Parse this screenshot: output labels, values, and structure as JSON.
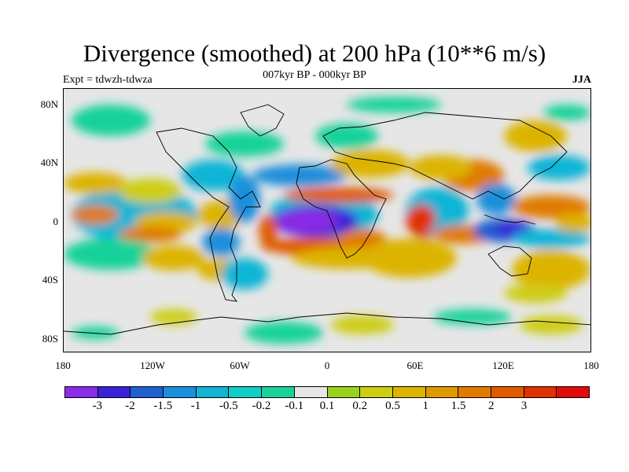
{
  "title": "Divergence (smoothed) at 200 hPa (10**6 m/s)",
  "subtitle": "007kyr BP - 000kyr BP",
  "left_label": "Expt = tdwzh-tdwza",
  "right_label": "JJA",
  "lat_labels": [
    "80N",
    "40N",
    "0",
    "40S",
    "80S"
  ],
  "lon_labels": [
    "180",
    "120W",
    "60W",
    "0",
    "60E",
    "120E",
    "180"
  ],
  "colorbar": {
    "colors": [
      "#8b2ce6",
      "#3a22d8",
      "#1f5fd0",
      "#1a8fdb",
      "#11b5d6",
      "#10cfc9",
      "#19d29a",
      "#e6e6e6",
      "#9ad21a",
      "#cdcd12",
      "#dcb400",
      "#e09a00",
      "#e07a00",
      "#e05a00",
      "#e03000",
      "#e00a0a"
    ],
    "labels": [
      "-3",
      "-2",
      "-1.5",
      "-1",
      "-0.5",
      "-0.2",
      "-0.1",
      "0.1",
      "0.2",
      "0.5",
      "1",
      "1.5",
      "2",
      "3"
    ]
  }
}
